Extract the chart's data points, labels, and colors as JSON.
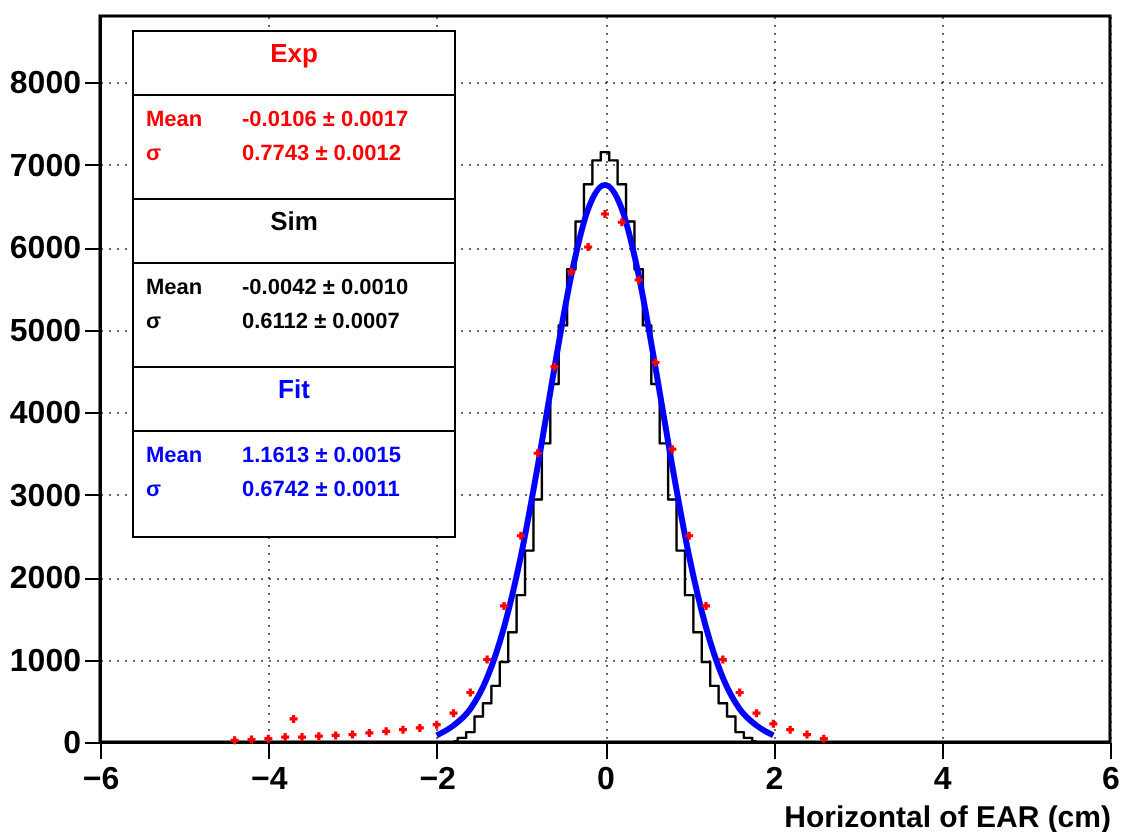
{
  "chart_data": {
    "type": "line",
    "xlabel": "Horizontal of EAR (cm)",
    "xlim": [
      -6,
      6
    ],
    "xticks": [
      -6,
      -4,
      -2,
      0,
      2,
      4,
      6
    ],
    "ylim": [
      0,
      8800
    ],
    "yticks": [
      0,
      1000,
      2000,
      3000,
      4000,
      5000,
      6000,
      7000,
      8000
    ],
    "grid": true,
    "legend": "top left",
    "series": [
      {
        "name": "Exp",
        "type": "scatter",
        "marker": "cross",
        "color": "#ff0000",
        "x": [
          -4.4,
          -4.2,
          -4.0,
          -3.8,
          -3.7,
          -3.6,
          -3.4,
          -3.2,
          -3.0,
          -2.8,
          -2.6,
          -2.4,
          -2.2,
          -2.0,
          -1.8,
          -1.6,
          -1.4,
          -1.2,
          -1.0,
          -0.8,
          -0.6,
          -0.4,
          -0.2,
          0,
          0.2,
          0.4,
          0.6,
          0.8,
          1.0,
          1.2,
          1.4,
          1.6,
          1.8,
          2.0,
          2.2,
          2.4,
          2.6
        ],
        "values": [
          20,
          30,
          40,
          60,
          280,
          60,
          70,
          80,
          90,
          110,
          130,
          150,
          170,
          210,
          350,
          600,
          1000,
          1650,
          2500,
          3500,
          4550,
          5700,
          6000,
          6400,
          6300,
          5600,
          4600,
          3550,
          2500,
          1650,
          1000,
          600,
          350,
          220,
          150,
          90,
          40
        ]
      },
      {
        "name": "Sim",
        "type": "step",
        "color": "#000000",
        "x": [
          -1.8,
          -1.7,
          -1.6,
          -1.5,
          -1.4,
          -1.3,
          -1.2,
          -1.1,
          -1.0,
          -0.9,
          -0.8,
          -0.7,
          -0.6,
          -0.5,
          -0.4,
          -0.3,
          -0.2,
          -0.1,
          0,
          0.1,
          0.2,
          0.3,
          0.4,
          0.5,
          0.6,
          0.7,
          0.8,
          0.9,
          1.0,
          1.1,
          1.2,
          1.3,
          1.4,
          1.5,
          1.6,
          1.7,
          1.8
        ],
        "values": [
          10,
          50,
          120,
          310,
          470,
          680,
          970,
          1330,
          1780,
          2320,
          2940,
          3620,
          4340,
          5050,
          5730,
          6310,
          6760,
          7050,
          7150,
          7050,
          6760,
          6310,
          5730,
          5050,
          4340,
          3620,
          2940,
          2320,
          1780,
          1330,
          970,
          680,
          470,
          310,
          120,
          50,
          10
        ]
      },
      {
        "name": "Fit",
        "color": "#0000ff",
        "x": [
          -2.0,
          -1.8,
          -1.6,
          -1.4,
          -1.2,
          -1.0,
          -0.8,
          -0.6,
          -0.4,
          -0.2,
          0,
          0.2,
          0.4,
          0.6,
          0.8,
          1.0,
          1.2,
          1.4,
          1.6,
          1.8,
          2.0
        ],
        "values": [
          80,
          200,
          400,
          780,
          1390,
          2250,
          3340,
          4540,
          5660,
          6460,
          6750,
          6460,
          5660,
          4540,
          3340,
          2250,
          1390,
          780,
          400,
          200,
          80
        ]
      }
    ],
    "annotations": [
      "Mean",
      "-0.0106 ± 0.0017",
      "σ",
      "0.7743 ± 0.0012",
      "Mean",
      "-0.0042 ± 0.0010",
      "σ",
      "0.6112 ± 0.0007",
      "Mean",
      "1.1613 ± 0.0015",
      "σ",
      "0.6742 ± 0.0011"
    ]
  }
}
